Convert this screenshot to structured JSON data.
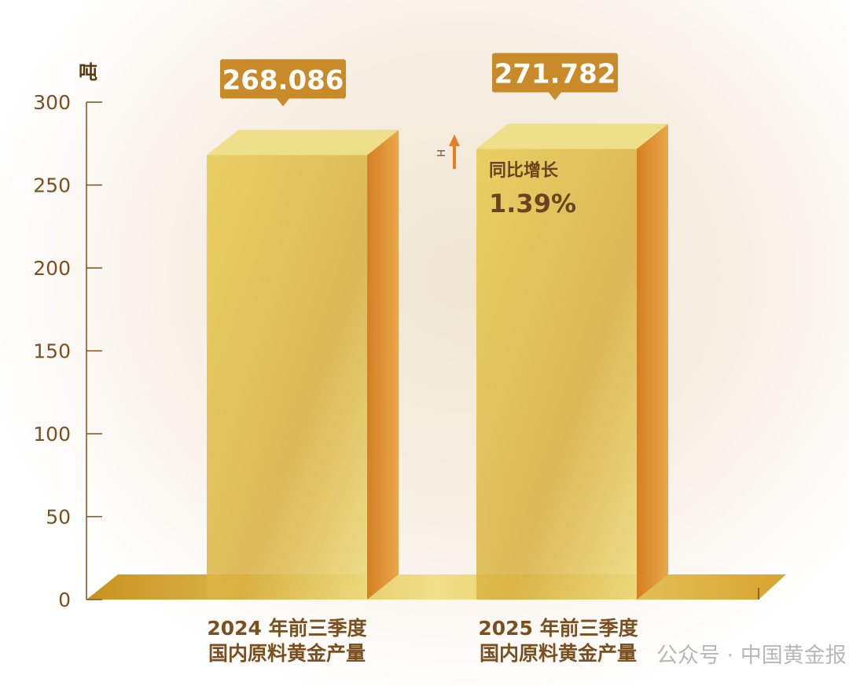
{
  "chart_data": {
    "type": "bar",
    "categories": [
      "2024 年前三季度\n国内原料黄金产量",
      "2025 年前三季度\n国内原料黄金产量"
    ],
    "category_lines": [
      [
        "2024 年前三季度",
        "国内原料黄金产量"
      ],
      [
        "2025 年前三季度",
        "国内原料黄金产量"
      ]
    ],
    "values": [
      268.086,
      271.782
    ],
    "data_labels": [
      "268.086",
      "271.782"
    ],
    "ylabel": "吨",
    "ylim": [
      0,
      300
    ],
    "yticks": [
      0,
      50,
      100,
      150,
      200,
      250,
      300
    ],
    "grid": false,
    "annotation": {
      "title": "同比增长",
      "value": "1.39%",
      "arrow_label": "H"
    },
    "colors": {
      "bar_front": "#e2c14a",
      "bar_side": "#d9892a",
      "bar_top": "#eee08a",
      "axis": "#7b5020",
      "label_bg": "#c98a2a",
      "arrow": "#e67e22"
    }
  },
  "watermark": "公众号 · 中国黄金报"
}
